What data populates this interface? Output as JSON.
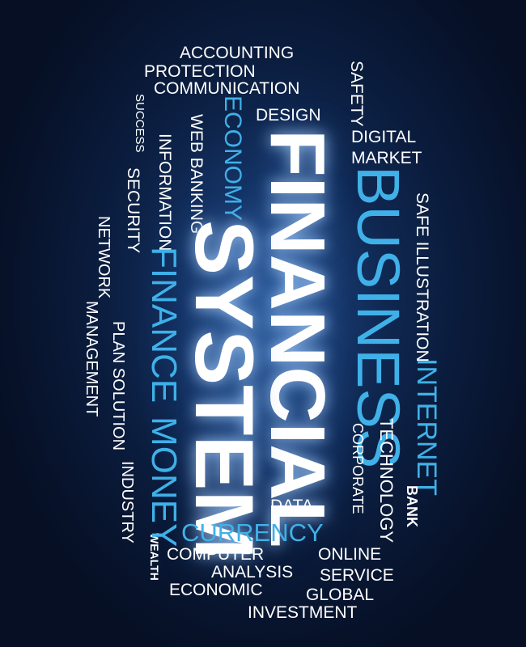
{
  "words": {
    "accounting": "ACCOUNTING",
    "protection": "PROTECTION",
    "communication": "COMMUNICATION",
    "safety": "SAFETY",
    "design": "DESIGN",
    "success": "SUCCESS",
    "economy": "ECONOMY",
    "web_banking": "WEB BANKING",
    "information": "INFORMATION",
    "security": "SECURITY",
    "network": "NETWORK",
    "management": "MANAGEMENT",
    "plan_solution": "PLAN SOLUTION",
    "industry": "INDUSTRY",
    "wealth": "WEALTH",
    "digital": "DIGITAL",
    "market": "MARKET",
    "business": "BUSINESS",
    "safe_illustration": "SAFE ILLUSTRATION",
    "internet": "INTERNET",
    "technology": "TECHNOLOGY",
    "corporate": "CORPORATE",
    "bank": "BANK",
    "financial": "FINANCIAL",
    "system": "SYSTEM",
    "finance": "FINANCE",
    "money": "MONEY",
    "data": "DATA",
    "currency": "CURRENCY",
    "computer": "COMPUTER",
    "online": "ONLINE",
    "analysis": "ANALYSIS",
    "service": "SERVICE",
    "economic": "ECONOMIC",
    "global": "GLOBAL",
    "investment": "INVESTMENT"
  },
  "colors": {
    "white": "#ffffff",
    "blue": "#3fb1e8",
    "background": "#0a1b3b"
  }
}
